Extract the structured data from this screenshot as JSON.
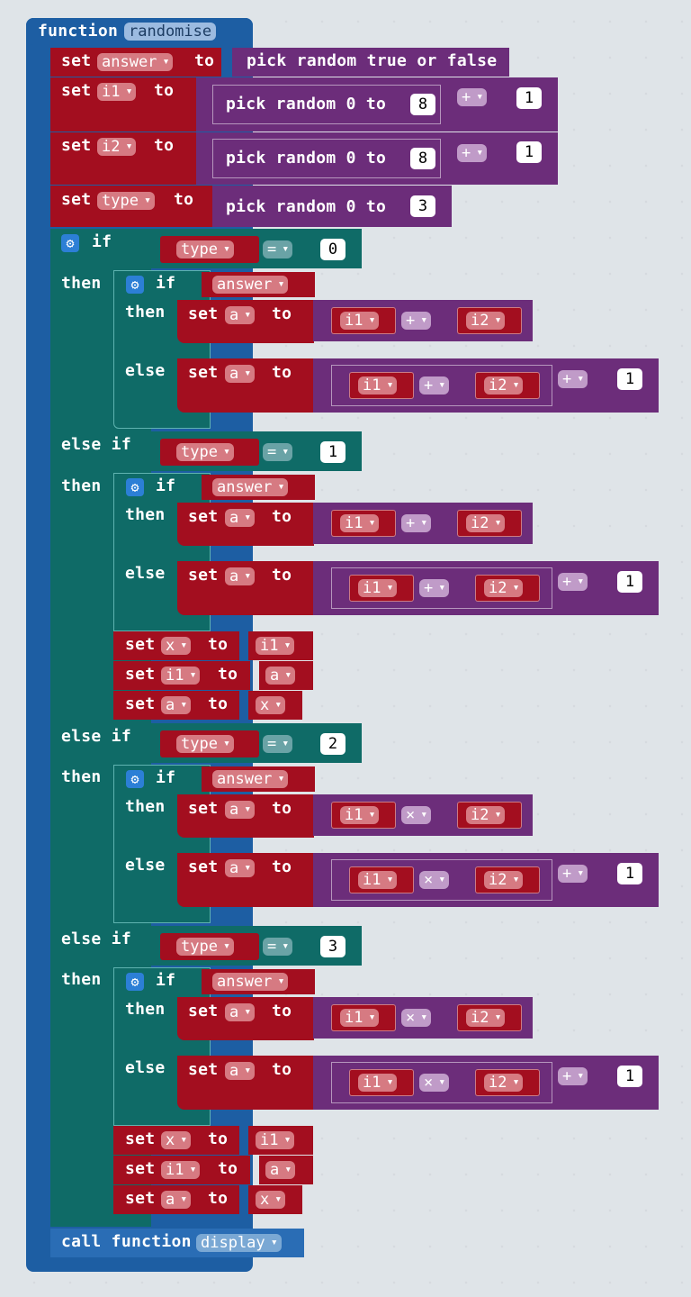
{
  "function_block": {
    "keyword": "function",
    "name": "randomise"
  },
  "kw": {
    "set": "set",
    "to": "to",
    "if": "if",
    "then": "then",
    "else": "else",
    "else_if": "else if",
    "call_function": "call function"
  },
  "vars": {
    "answer": "answer",
    "i1": "i1",
    "i2": "i2",
    "type": "type",
    "a": "a",
    "x": "x"
  },
  "ops": {
    "plus": "+",
    "times": "×",
    "equals": "="
  },
  "randoms": {
    "bool": "pick random true or false",
    "int": "pick random 0 to"
  },
  "numbers": {
    "n0": "0",
    "n1": "1",
    "n2": "2",
    "n3": "3",
    "n8": "8"
  },
  "call": {
    "name": "display"
  },
  "colors": {
    "function": "#1d5ea3",
    "logic": "#0f6b67",
    "variables": "#a30e1f",
    "math": "#6c2d7a",
    "background": "#ecf0f1"
  }
}
